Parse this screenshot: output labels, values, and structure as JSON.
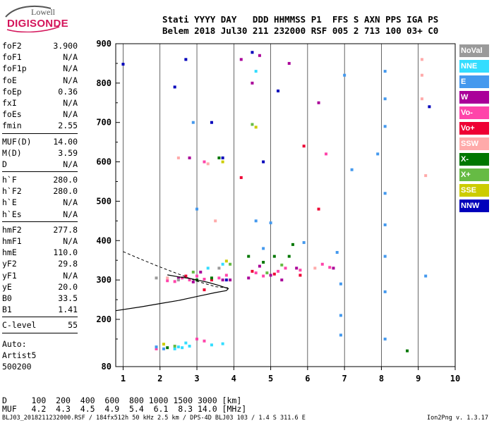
{
  "logo": {
    "line1": "Lowell",
    "line2": "DIGISONDE"
  },
  "header": {
    "row1": "Stati YYYY DAY   DDD HHMMSS P1  FFS S AXN PPS IGA PS",
    "row2": "Belem 2018 Jul30 211 232000 RSF 005 2 713 100 03+ C0"
  },
  "params_group1": [
    {
      "key": "foF2",
      "value": "3.900"
    },
    {
      "key": "foF1",
      "value": "N/A"
    },
    {
      "key": "foF1p",
      "value": "N/A"
    },
    {
      "key": "foE",
      "value": "N/A"
    },
    {
      "key": "foEp",
      "value": "0.36"
    },
    {
      "key": "fxI",
      "value": "N/A"
    },
    {
      "key": "foEs",
      "value": "N/A"
    },
    {
      "key": "fmin",
      "value": "2.55"
    }
  ],
  "params_group2": [
    {
      "key": "MUF(D)",
      "value": "14.00"
    },
    {
      "key": "M(D)",
      "value": "3.59"
    },
    {
      "key": "D",
      "value": "N/A"
    }
  ],
  "params_group3": [
    {
      "key": "h`F",
      "value": "280.0"
    },
    {
      "key": "h`F2",
      "value": "280.0"
    },
    {
      "key": "h`E",
      "value": "N/A"
    },
    {
      "key": "h`Es",
      "value": "N/A"
    }
  ],
  "params_group4": [
    {
      "key": "hmF2",
      "value": "277.8"
    },
    {
      "key": "hmF1",
      "value": "N/A"
    },
    {
      "key": "hmE",
      "value": "110.0"
    },
    {
      "key": "yF2",
      "value": "29.8"
    },
    {
      "key": "yF1",
      "value": "N/A"
    },
    {
      "key": "yE",
      "value": "20.0"
    },
    {
      "key": "B0",
      "value": "33.5"
    },
    {
      "key": "B1",
      "value": "1.41"
    }
  ],
  "params_group5": [
    {
      "key": "C-level",
      "value": "55"
    }
  ],
  "auto": {
    "line1": "Auto:",
    "line2": "Artist5",
    "line3": "500200"
  },
  "legend": [
    {
      "label": "NoVal",
      "color": "#9a9a9a"
    },
    {
      "label": "NNE",
      "color": "#33ddff"
    },
    {
      "label": "E",
      "color": "#4499ee"
    },
    {
      "label": "W",
      "color": "#aa0099"
    },
    {
      "label": "Vo-",
      "color": "#ff44aa"
    },
    {
      "label": "Vo+",
      "color": "#ee0033"
    },
    {
      "label": "SSW",
      "color": "#ffaaaa"
    },
    {
      "label": "X-",
      "color": "#007700"
    },
    {
      "label": "X+",
      "color": "#66bb44"
    },
    {
      "label": "SSE",
      "color": "#cccc00"
    },
    {
      "label": "NNW",
      "color": "#0000bb"
    }
  ],
  "footer": {
    "d_row": "D     100  200  400  600  800 1000 1500 3000 [km]",
    "muf_row": "MUF   4.2  4.3  4.5  4.9  5.4  6.1  8.3 14.0 [MHz]",
    "bottom": "BLJ03_2018211232000.RSF / 184fx512h 50 kHz 2.5 km / DPS-4D BLJ03 103 / 1.4 S 311.6 E",
    "version": "Ion2Png v. 1.3.17"
  },
  "chart_data": {
    "type": "scatter",
    "xlim": [
      0.8,
      10
    ],
    "ylim": [
      80,
      900
    ],
    "xticks": [
      1,
      2,
      3,
      4,
      5,
      6,
      7,
      8,
      9,
      10
    ],
    "yticks": [
      80,
      200,
      300,
      400,
      500,
      600,
      700,
      800,
      900
    ],
    "xunit": "MHz",
    "yunit": "km",
    "grid": true,
    "legend_position": "right",
    "series": [
      {
        "name": "Vo-",
        "points": [
          [
            2.2,
            298
          ],
          [
            2.4,
            296
          ],
          [
            2.6,
            305
          ],
          [
            2.8,
            300
          ],
          [
            3.0,
            310
          ],
          [
            3.2,
            302
          ],
          [
            3.6,
            305
          ],
          [
            3.8,
            312
          ],
          [
            4.6,
            318
          ],
          [
            4.8,
            310
          ],
          [
            5.2,
            322
          ],
          [
            5.4,
            330
          ],
          [
            5.8,
            325
          ],
          [
            6.6,
            332
          ],
          [
            3.0,
            150
          ],
          [
            3.2,
            145
          ],
          [
            1.9,
            125
          ],
          [
            6.4,
            340
          ],
          [
            6.5,
            620
          ],
          [
            3.2,
            600
          ]
        ]
      },
      {
        "name": "W",
        "points": [
          [
            2.5,
            305
          ],
          [
            2.9,
            295
          ],
          [
            3.1,
            320
          ],
          [
            3.7,
            300
          ],
          [
            4.4,
            305
          ],
          [
            4.7,
            335
          ],
          [
            5.0,
            312
          ],
          [
            5.3,
            300
          ],
          [
            5.7,
            330
          ],
          [
            2.8,
            610
          ],
          [
            6.3,
            750
          ],
          [
            4.5,
            800
          ],
          [
            4.7,
            870
          ],
          [
            4.2,
            860
          ],
          [
            5.5,
            850
          ],
          [
            3.9,
            300
          ],
          [
            6.7,
            330
          ]
        ]
      },
      {
        "name": "Vo+",
        "points": [
          [
            2.7,
            310
          ],
          [
            3.4,
            300
          ],
          [
            4.5,
            322
          ],
          [
            5.1,
            315
          ],
          [
            5.8,
            312
          ],
          [
            6.3,
            480
          ],
          [
            5.9,
            640
          ],
          [
            4.2,
            560
          ],
          [
            3.2,
            275
          ]
        ]
      },
      {
        "name": "NNE",
        "points": [
          [
            2.5,
            130
          ],
          [
            2.6,
            128
          ],
          [
            2.7,
            140
          ],
          [
            2.8,
            132
          ],
          [
            3.4,
            135
          ],
          [
            3.7,
            138
          ],
          [
            2.4,
            125
          ],
          [
            4.6,
            830
          ],
          [
            3.7,
            340
          ],
          [
            3.3,
            330
          ]
        ]
      },
      {
        "name": "E",
        "points": [
          [
            4.6,
            450
          ],
          [
            4.8,
            380
          ],
          [
            5.0,
            445
          ],
          [
            5.9,
            395
          ],
          [
            6.8,
            370
          ],
          [
            6.9,
            290
          ],
          [
            6.9,
            210
          ],
          [
            6.9,
            160
          ],
          [
            8.1,
            830
          ],
          [
            8.1,
            760
          ],
          [
            8.1,
            690
          ],
          [
            7.9,
            620
          ],
          [
            8.1,
            520
          ],
          [
            8.1,
            440
          ],
          [
            8.1,
            360
          ],
          [
            8.1,
            270
          ],
          [
            8.1,
            150
          ],
          [
            7.2,
            580
          ],
          [
            7.0,
            820
          ],
          [
            1.9,
            130
          ],
          [
            2.1,
            125
          ],
          [
            9.2,
            310
          ],
          [
            3.0,
            480
          ],
          [
            2.9,
            700
          ]
        ]
      },
      {
        "name": "X-",
        "points": [
          [
            2.2,
            128
          ],
          [
            3.0,
            300
          ],
          [
            4.4,
            360
          ],
          [
            4.8,
            345
          ],
          [
            5.1,
            360
          ],
          [
            5.5,
            360
          ],
          [
            3.4,
            305
          ],
          [
            3.6,
            610
          ],
          [
            5.6,
            390
          ],
          [
            8.7,
            120
          ]
        ]
      },
      {
        "name": "X+",
        "points": [
          [
            2.4,
            132
          ],
          [
            2.9,
            320
          ],
          [
            3.9,
            340
          ],
          [
            4.9,
            318
          ],
          [
            5.3,
            338
          ],
          [
            4.5,
            695
          ]
        ]
      },
      {
        "name": "SSW",
        "points": [
          [
            2.5,
            610
          ],
          [
            3.3,
            595
          ],
          [
            9.1,
            820
          ],
          [
            9.1,
            760
          ],
          [
            9.2,
            565
          ],
          [
            6.2,
            330
          ],
          [
            3.5,
            450
          ],
          [
            2.2,
            305
          ],
          [
            9.1,
            860
          ]
        ]
      },
      {
        "name": "SSE",
        "points": [
          [
            3.8,
            348
          ],
          [
            2.1,
            137
          ],
          [
            4.6,
            688
          ],
          [
            3.7,
            600
          ]
        ]
      },
      {
        "name": "NNW",
        "points": [
          [
            4.5,
            878
          ],
          [
            5.2,
            780
          ],
          [
            1.0,
            848
          ],
          [
            3.4,
            700
          ],
          [
            3.7,
            610
          ],
          [
            4.8,
            600
          ],
          [
            3.8,
            300
          ],
          [
            9.3,
            740
          ],
          [
            2.4,
            790
          ],
          [
            2.7,
            860
          ]
        ]
      },
      {
        "name": "NoVal",
        "points": [
          [
            2.5,
            300
          ],
          [
            3.6,
            330
          ],
          [
            1.9,
            305
          ]
        ]
      }
    ],
    "profile": [
      [
        0.8,
        222
      ],
      [
        1.5,
        232
      ],
      [
        2.0,
        240
      ],
      [
        2.5,
        248
      ],
      [
        3.0,
        258
      ],
      [
        3.5,
        268
      ],
      [
        3.8,
        273
      ],
      [
        3.85,
        278
      ],
      [
        3.6,
        286
      ],
      [
        3.3,
        294
      ],
      [
        3.0,
        300
      ],
      [
        2.8,
        304
      ],
      [
        2.5,
        308
      ],
      [
        2.2,
        313
      ]
    ],
    "extrapolation": [
      [
        1.0,
        372
      ],
      [
        1.5,
        352
      ],
      [
        2.0,
        333
      ],
      [
        2.5,
        315
      ],
      [
        3.0,
        297
      ],
      [
        3.5,
        283
      ],
      [
        3.85,
        280
      ]
    ]
  }
}
